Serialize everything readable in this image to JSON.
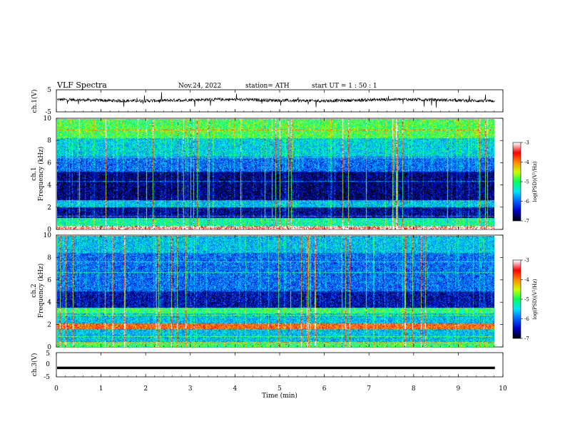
{
  "header": {
    "title": "VLF  Spectra",
    "date": "Nov.24, 2022",
    "station": "station= ATH",
    "start_ut": "start  UT  =    1  : 50 : 1"
  },
  "chart_data": [
    {
      "type": "line",
      "name": "ch1-waveform",
      "ylabel": "ch.1(V)",
      "ylim": [
        -5,
        5
      ],
      "yticks": [
        "5",
        "-5"
      ],
      "xlim": [
        0,
        10
      ],
      "trace_level": 0.3
    },
    {
      "type": "heatmap",
      "name": "ch1-spectrogram",
      "ylabel_line1": "ch.1",
      "ylabel_line2": "Frequency  (kHz)",
      "ylim": [
        0,
        10
      ],
      "yticks": [
        "10",
        "8",
        "6",
        "4",
        "2",
        "0"
      ],
      "data_xlim": [
        0,
        9.82
      ],
      "colorbar": {
        "label": "log(PSD)(V²/Hz)",
        "ticks": [
          "-3",
          "-4",
          "-5",
          "-6",
          "-7"
        ],
        "range": [
          -7,
          -3
        ]
      },
      "frequency_profile_khz": [
        {
          "f": [
            0.0,
            0.3
          ],
          "level": -3.2
        },
        {
          "f": [
            0.3,
            1.0
          ],
          "level": -5.2
        },
        {
          "f": [
            1.0,
            2.0
          ],
          "level": -6.6
        },
        {
          "f": [
            2.0,
            2.6
          ],
          "level": -5.6
        },
        {
          "f": [
            2.6,
            5.2
          ],
          "level": -6.7
        },
        {
          "f": [
            5.2,
            6.6
          ],
          "level": -6.0
        },
        {
          "f": [
            6.6,
            8.3
          ],
          "level": -5.5
        },
        {
          "f": [
            8.3,
            10.0
          ],
          "level": -4.9
        }
      ]
    },
    {
      "type": "heatmap",
      "name": "ch2-spectrogram",
      "ylabel_line1": "ch.2",
      "ylabel_line2": "Frequency  (kHz)",
      "ylim": [
        0,
        10
      ],
      "yticks": [
        "10",
        "8",
        "6",
        "4",
        "2",
        "0"
      ],
      "data_xlim": [
        0,
        9.82
      ],
      "colorbar": {
        "label": "log(PSD)(V²/Hz)",
        "ticks": [
          "-3",
          "-4",
          "-5",
          "-6",
          "-7"
        ],
        "range": [
          -7,
          -3
        ]
      },
      "frequency_profile_khz": [
        {
          "f": [
            0.0,
            0.4
          ],
          "level": -5.0
        },
        {
          "f": [
            0.4,
            1.6
          ],
          "level": -5.6
        },
        {
          "f": [
            1.6,
            2.1
          ],
          "level": -3.8
        },
        {
          "f": [
            2.1,
            3.0
          ],
          "level": -5.6
        },
        {
          "f": [
            3.0,
            3.5
          ],
          "level": -5.0
        },
        {
          "f": [
            3.5,
            5.0
          ],
          "level": -6.5
        },
        {
          "f": [
            5.0,
            8.5
          ],
          "level": -6.0
        },
        {
          "f": [
            8.5,
            10.0
          ],
          "level": -5.6
        }
      ]
    },
    {
      "type": "line",
      "name": "ch3-waveform",
      "ylabel": "ch.3(V)",
      "ylim": [
        -5,
        5
      ],
      "yticks": [
        "5",
        "0",
        "-5"
      ],
      "xlim": [
        0,
        10
      ],
      "trace_level": -1.3
    }
  ],
  "xaxis": {
    "label": "Time  (min)",
    "ticks": [
      "0",
      "1",
      "2",
      "3",
      "4",
      "5",
      "6",
      "7",
      "8",
      "9",
      "10"
    ],
    "range": [
      0,
      10
    ]
  },
  "colors": {
    "colormap": [
      "#000000",
      "#0000c8",
      "#0064ff",
      "#00e6ff",
      "#00ff64",
      "#c8ff00",
      "#ff8c00",
      "#ff0000",
      "#ffffff"
    ]
  }
}
